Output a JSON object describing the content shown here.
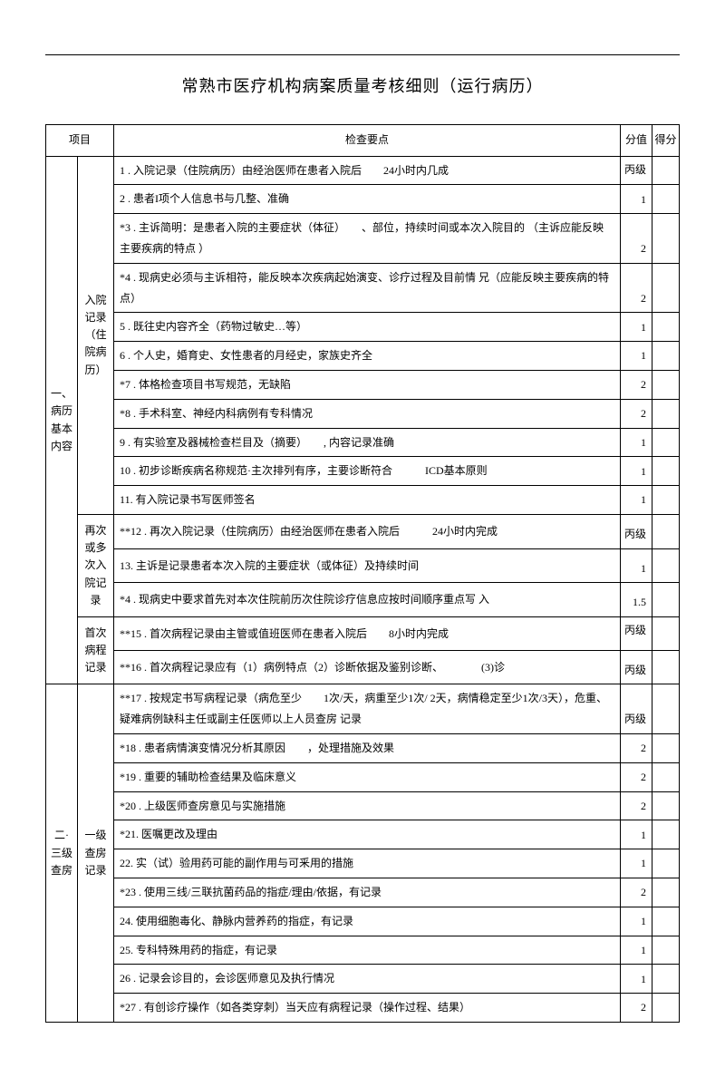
{
  "title": "常熟市医疗机构病案质量考核细则（运行病历）",
  "headers": {
    "project": "项目",
    "checkpoint": "检查要点",
    "score": "分值",
    "got": "得分"
  },
  "sections": [
    {
      "cat1": "一、病历基本内容",
      "subs": [
        {
          "cat2": "入院记录（住院病历）",
          "rows": [
            {
              "text": "1 . 入院记录（住院病历）由经治医师在患者入院后　　24小时内几成",
              "score": "丙级"
            },
            {
              "text": "2 . 患者I项个人信息书与几整、准确",
              "score": "1"
            },
            {
              "text": "*3 . 主诉简明：是患者入院的主要症状（体征）　　、部位，持续时间或本次入院目的  （主诉应能反映主要疾病的特点  ）",
              "score": "2"
            },
            {
              "text": "*4 . 现病史必须与主诉相符，能反映本次疾病起始演变、诊疗过程及目前情  兄（应能反映主要疾病的特点）",
              "score": "2"
            },
            {
              "text": "5 . 既往史内容齐全（药物过敏史…等）",
              "score": "1"
            },
            {
              "text": "6 . 个人史，婚育史、女性患者的月经史，家族史齐全",
              "score": "1"
            },
            {
              "text": "*7 . 体格检查项目书写规范，无缺陷",
              "score": "2"
            },
            {
              "text": "*8 . 手术科室、神经内科病例有专科情况",
              "score": "2"
            },
            {
              "text": "9 . 有实验室及器械检查栏目及（摘要）　　, 内容记录准确",
              "score": "1"
            },
            {
              "text": "10 . 初步诊断疾病名称规范·主次排列有序，主要诊断符合　　　ICD基本原则",
              "score": "1"
            },
            {
              "text": "11. 有入院记录书写医师签名",
              "score": "1"
            }
          ]
        },
        {
          "cat2": "再次或多次入院记录",
          "rows": [
            {
              "text": "**12 . 再次入院记录（住院病历）由经治医师在患者入院后　　　24小时内完成",
              "score": "丙级"
            },
            {
              "text": "13. 主诉是记录患者本次入院的主要症状（或体征）及持续时间",
              "score": "1"
            },
            {
              "text": "*4 . 现病史中要求首先对本次住院前历次住院诊疗信息应按时间顺序重点写  入",
              "score": "1.5"
            }
          ]
        },
        {
          "cat2": "首次病程记录",
          "rows": [
            {
              "text": "**15 . 首次病程记录由主管或值班医师在患者入院后　　8小时内完成",
              "score": "丙级"
            },
            {
              "text": "**16 . 首次病程记录应有（1）病例特点（2）诊断依据及鉴别诊断、　　　　(3)诊",
              "score": "丙级"
            }
          ]
        }
      ]
    },
    {
      "cat1": "二· 三级查房",
      "subs": [
        {
          "cat2": "一级查房记录",
          "rows": [
            {
              "text": "**17 . 按规定书写病程记录（病危至少　　1次/天，病重至少1次/ 2天，病情稳定至少1次/3天），危重、疑难病例缺科主任或副主任医师以上人员查房  记录",
              "score": "丙级"
            },
            {
              "text": "*18 . 患者病情演变情况分析其原因　　，处理措施及效果",
              "score": "2"
            },
            {
              "text": "*19 . 重要的辅助检查结果及临床意义",
              "score": "2"
            },
            {
              "text": "*20 . 上级医师查房意见与实施措施",
              "score": "2"
            },
            {
              "text": "*21. 医嘱更改及理由",
              "score": "1"
            },
            {
              "text": "22. 实（试）验用药可能的副作用与可釆用的措施",
              "score": "1"
            },
            {
              "text": "*23 . 使用三线/三联抗菌药品的指症/理由/依据，有记录",
              "score": "2"
            },
            {
              "text": "24. 使用细胞毒化、静脉内营养药的指症，有记录",
              "score": "1"
            },
            {
              "text": "25. 专科特殊用药的指症，有记录",
              "score": "1"
            },
            {
              "text": "26 . 记录会诊目的，会诊医师意见及执行情况",
              "score": "1"
            },
            {
              "text": "*27 . 有创诊疗操作（如各类穿刺）当天应有病程记录（操作过程、结果）",
              "score": "2"
            }
          ]
        }
      ]
    }
  ]
}
